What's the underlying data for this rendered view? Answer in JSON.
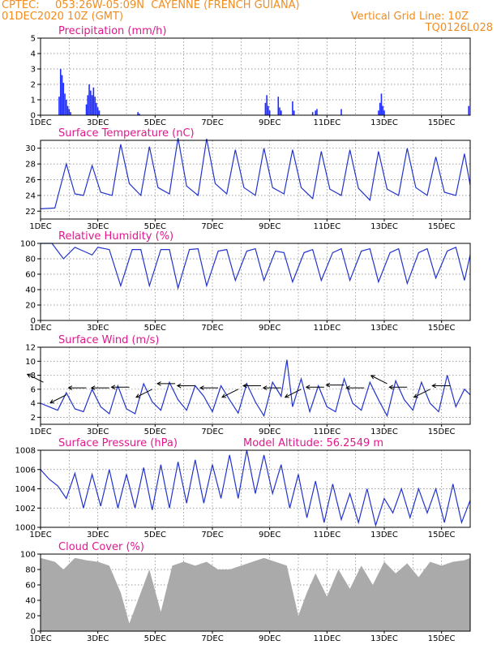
{
  "header": {
    "source": "CPTEC:",
    "location": "053:26W-05:09N  CAYENNE (FRENCH GUIANA)",
    "run": "01DEC2020 10Z (GMT)",
    "grid_note": "Vertical Grid Line: 10Z",
    "code": "TQ0126L028"
  },
  "colors": {
    "header": "#f28c1e",
    "title": "#e0188c",
    "line": "#2233cc",
    "precip_bar": "#1f2cff",
    "cloud_fill": "#aaaaaa"
  },
  "x_axis": {
    "labels": [
      "1DEC",
      "3DEC",
      "5DEC",
      "7DEC",
      "9DEC",
      "11DEC",
      "13DEC",
      "15DEC"
    ],
    "start_day": 1,
    "end_day": 16
  },
  "chart_data": [
    {
      "type": "bar",
      "title": "Precipitation (mm/h)",
      "ylim": [
        0,
        5
      ],
      "yticks": [
        "0",
        "1",
        "2",
        "3",
        "4",
        "5"
      ],
      "grid": true,
      "x": [
        1.65,
        1.7,
        1.75,
        1.8,
        1.85,
        1.9,
        1.95,
        2.0,
        2.05,
        2.6,
        2.65,
        2.7,
        2.75,
        2.8,
        2.85,
        2.9,
        2.95,
        3.0,
        3.05,
        4.4,
        4.45,
        8.85,
        8.9,
        8.95,
        9.0,
        9.3,
        9.35,
        9.4,
        9.8,
        9.85,
        10.5,
        10.6,
        10.65,
        11.5,
        12.8,
        12.85,
        12.9,
        12.95,
        13.0,
        15.95
      ],
      "values": [
        1.2,
        3.0,
        2.6,
        2.1,
        1.4,
        1.0,
        0.6,
        0.4,
        0.2,
        0.7,
        1.3,
        2.0,
        1.6,
        1.3,
        1.8,
        1.2,
        0.8,
        0.5,
        0.3,
        0.2,
        0.1,
        0.8,
        1.3,
        0.6,
        0.3,
        1.2,
        0.5,
        0.3,
        0.9,
        0.3,
        0.2,
        0.3,
        0.4,
        0.4,
        0.3,
        0.8,
        1.4,
        0.6,
        0.3,
        0.6
      ]
    },
    {
      "type": "line",
      "title": "Surface Temperature (nC)",
      "ylim": [
        21,
        31
      ],
      "yticks": [
        "22",
        "24",
        "26",
        "28",
        "30"
      ],
      "grid": true,
      "x": [
        1.0,
        1.5,
        1.9,
        2.2,
        2.5,
        2.8,
        3.1,
        3.5,
        3.8,
        4.1,
        4.5,
        4.8,
        5.1,
        5.5,
        5.8,
        6.1,
        6.5,
        6.8,
        7.1,
        7.5,
        7.8,
        8.1,
        8.5,
        8.8,
        9.1,
        9.5,
        9.8,
        10.1,
        10.5,
        10.8,
        11.1,
        11.5,
        11.8,
        12.1,
        12.5,
        12.8,
        13.1,
        13.5,
        13.8,
        14.1,
        14.5,
        14.8,
        15.1,
        15.5,
        15.8,
        16.0
      ],
      "values": [
        22.3,
        22.4,
        28.0,
        24.2,
        24.0,
        27.8,
        24.4,
        24.0,
        30.5,
        25.5,
        24.0,
        30.2,
        25.0,
        24.2,
        31.3,
        25.2,
        24.0,
        31.2,
        25.5,
        24.2,
        29.8,
        25.0,
        24.0,
        30.0,
        25.0,
        24.2,
        29.8,
        25.0,
        23.6,
        29.6,
        24.8,
        24.0,
        29.8,
        24.9,
        23.4,
        29.6,
        24.8,
        24.0,
        30.0,
        25.0,
        24.0,
        28.9,
        24.4,
        24.0,
        29.3,
        25.3
      ]
    },
    {
      "type": "line",
      "title": "Relative Humidity (%)",
      "ylim": [
        0,
        100
      ],
      "yticks": [
        "0",
        "20",
        "40",
        "60",
        "80",
        "100"
      ],
      "grid": true,
      "x": [
        1.0,
        1.4,
        1.8,
        2.2,
        2.5,
        2.8,
        3.0,
        3.4,
        3.8,
        4.2,
        4.5,
        4.8,
        5.2,
        5.5,
        5.8,
        6.2,
        6.5,
        6.8,
        7.2,
        7.5,
        7.8,
        8.2,
        8.5,
        8.8,
        9.2,
        9.5,
        9.8,
        10.2,
        10.5,
        10.8,
        11.2,
        11.5,
        11.8,
        12.2,
        12.5,
        12.8,
        13.2,
        13.5,
        13.8,
        14.2,
        14.5,
        14.8,
        15.2,
        15.5,
        15.8,
        16.0
      ],
      "values": [
        100,
        100,
        80,
        95,
        90,
        85,
        95,
        92,
        45,
        92,
        92,
        45,
        92,
        92,
        42,
        92,
        93,
        45,
        90,
        92,
        52,
        90,
        93,
        52,
        90,
        88,
        50,
        88,
        92,
        52,
        88,
        93,
        52,
        90,
        93,
        50,
        88,
        93,
        48,
        88,
        93,
        55,
        90,
        95,
        52,
        85
      ]
    },
    {
      "type": "line",
      "title": "Surface Wind (m/s)",
      "ylim": [
        1,
        12
      ],
      "yticks": [
        "2",
        "4",
        "6",
        "8",
        "10",
        "12"
      ],
      "grid": true,
      "x": [
        1.0,
        1.3,
        1.6,
        1.9,
        2.2,
        2.5,
        2.8,
        3.1,
        3.4,
        3.7,
        4.0,
        4.3,
        4.6,
        4.9,
        5.2,
        5.5,
        5.8,
        6.1,
        6.4,
        6.7,
        7.0,
        7.3,
        7.6,
        7.9,
        8.2,
        8.5,
        8.8,
        9.1,
        9.4,
        9.6,
        9.8,
        10.1,
        10.4,
        10.7,
        11.0,
        11.3,
        11.6,
        11.9,
        12.2,
        12.5,
        12.8,
        13.1,
        13.4,
        13.7,
        14.0,
        14.3,
        14.6,
        14.9,
        15.2,
        15.5,
        15.8,
        16.0
      ],
      "values": [
        4.0,
        3.5,
        3.0,
        5.5,
        3.2,
        2.8,
        6.0,
        3.5,
        2.5,
        6.5,
        3.2,
        2.5,
        6.8,
        4.2,
        3.0,
        7.0,
        4.5,
        3.0,
        6.5,
        5.0,
        2.8,
        6.5,
        4.5,
        2.6,
        6.8,
        4.2,
        2.2,
        7.0,
        5.0,
        10.2,
        3.5,
        7.5,
        2.8,
        6.5,
        3.5,
        2.8,
        7.5,
        4.0,
        3.0,
        7.0,
        4.5,
        2.2,
        7.2,
        4.5,
        3.0,
        7.0,
        4.0,
        2.8,
        8.0,
        3.5,
        6.0,
        5.2
      ],
      "arrows": [
        {
          "x": 1.1,
          "y": 7.0,
          "dir": "nw"
        },
        {
          "x": 1.9,
          "y": 5.2,
          "dir": "sw"
        },
        {
          "x": 2.6,
          "y": 6.2,
          "dir": "w"
        },
        {
          "x": 3.4,
          "y": 6.2,
          "dir": "w"
        },
        {
          "x": 4.1,
          "y": 6.3,
          "dir": "w"
        },
        {
          "x": 4.9,
          "y": 6.0,
          "dir": "sw"
        },
        {
          "x": 5.7,
          "y": 6.8,
          "dir": "w"
        },
        {
          "x": 6.4,
          "y": 6.5,
          "dir": "w"
        },
        {
          "x": 7.2,
          "y": 6.2,
          "dir": "w"
        },
        {
          "x": 7.9,
          "y": 6.0,
          "dir": "sw"
        },
        {
          "x": 8.7,
          "y": 6.5,
          "dir": "w"
        },
        {
          "x": 9.4,
          "y": 6.2,
          "dir": "w"
        },
        {
          "x": 10.1,
          "y": 6.0,
          "dir": "sw"
        },
        {
          "x": 10.9,
          "y": 6.3,
          "dir": "w"
        },
        {
          "x": 11.6,
          "y": 6.6,
          "dir": "w"
        },
        {
          "x": 12.3,
          "y": 6.2,
          "dir": "w"
        },
        {
          "x": 13.1,
          "y": 6.8,
          "dir": "nw"
        },
        {
          "x": 13.8,
          "y": 6.3,
          "dir": "w"
        },
        {
          "x": 14.6,
          "y": 6.0,
          "dir": "sw"
        },
        {
          "x": 15.3,
          "y": 6.5,
          "dir": "w"
        }
      ]
    },
    {
      "type": "line",
      "title": "Surface Pressure (hPa)",
      "annotation": "Model Altitude: 56.2549 m",
      "ylim": [
        1000,
        1008
      ],
      "yticks": [
        "1000",
        "1002",
        "1004",
        "1006",
        "1008"
      ],
      "grid": true,
      "x": [
        1.0,
        1.3,
        1.6,
        1.9,
        2.2,
        2.5,
        2.8,
        3.1,
        3.4,
        3.7,
        4.0,
        4.3,
        4.6,
        4.9,
        5.2,
        5.5,
        5.8,
        6.1,
        6.4,
        6.7,
        7.0,
        7.3,
        7.6,
        7.9,
        8.2,
        8.5,
        8.8,
        9.1,
        9.4,
        9.7,
        10.0,
        10.3,
        10.6,
        10.9,
        11.2,
        11.5,
        11.8,
        12.1,
        12.4,
        12.7,
        13.0,
        13.3,
        13.6,
        13.9,
        14.2,
        14.5,
        14.8,
        15.1,
        15.4,
        15.7,
        16.0
      ],
      "values": [
        1006.0,
        1005.0,
        1004.3,
        1003.0,
        1005.6,
        1002.0,
        1005.5,
        1002.2,
        1006.0,
        1002.0,
        1005.5,
        1002.0,
        1006.2,
        1001.8,
        1006.5,
        1002.0,
        1006.8,
        1002.5,
        1007.0,
        1002.5,
        1006.5,
        1003.0,
        1007.5,
        1003.0,
        1008.0,
        1003.5,
        1007.5,
        1003.5,
        1006.5,
        1002.0,
        1005.5,
        1001.0,
        1004.8,
        1000.5,
        1004.5,
        1000.8,
        1003.5,
        1000.5,
        1004.0,
        1000.2,
        1003.0,
        1001.5,
        1004.0,
        1001.0,
        1004.0,
        1001.5,
        1004.0,
        1000.5,
        1004.5,
        1000.5,
        1002.8
      ]
    },
    {
      "type": "area",
      "title": "Cloud Cover (%)",
      "ylim": [
        0,
        100
      ],
      "yticks": [
        "0",
        "20",
        "40",
        "60",
        "80",
        "100"
      ],
      "grid": true,
      "x": [
        1.0,
        1.5,
        1.8,
        2.2,
        2.6,
        3.0,
        3.4,
        3.8,
        4.1,
        4.4,
        4.8,
        5.2,
        5.6,
        6.0,
        6.4,
        6.8,
        7.2,
        7.6,
        8.0,
        8.4,
        8.8,
        9.2,
        9.6,
        10.0,
        10.3,
        10.6,
        11.0,
        11.4,
        11.8,
        12.2,
        12.6,
        13.0,
        13.4,
        13.8,
        14.2,
        14.6,
        15.0,
        15.4,
        15.8,
        16.0
      ],
      "values": [
        95,
        90,
        80,
        95,
        92,
        90,
        85,
        50,
        10,
        40,
        80,
        25,
        85,
        90,
        85,
        90,
        80,
        80,
        85,
        90,
        95,
        90,
        85,
        20,
        50,
        75,
        45,
        80,
        55,
        85,
        60,
        90,
        75,
        88,
        70,
        90,
        85,
        90,
        92,
        95
      ]
    }
  ]
}
